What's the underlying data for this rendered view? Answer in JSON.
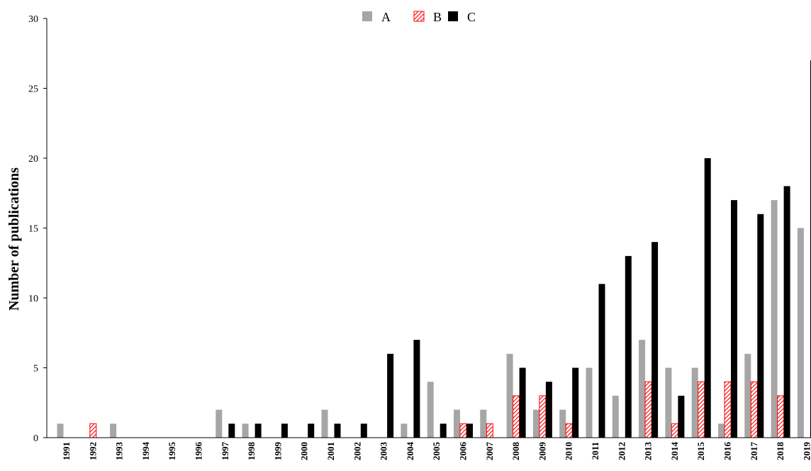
{
  "chart_data": {
    "type": "bar",
    "title": "",
    "xlabel": "",
    "ylabel": "Number of publications",
    "ylim": [
      0,
      30
    ],
    "yticks": [
      0,
      5,
      10,
      15,
      20,
      25,
      30
    ],
    "grid": false,
    "legend": "top-center",
    "categories": [
      "1991",
      "1992",
      "1993",
      "1994",
      "1995",
      "1996",
      "1997",
      "1998",
      "1999",
      "2000",
      "2001",
      "2002",
      "2003",
      "2004",
      "2005",
      "2006",
      "2007",
      "2008",
      "2009",
      "2010",
      "2011",
      "2012",
      "2013",
      "2014",
      "2015",
      "2016",
      "2017",
      "2018",
      "2019"
    ],
    "series": [
      {
        "name": "A",
        "color": "#a6a6a6",
        "pattern": "solid",
        "values": [
          1,
          0,
          1,
          0,
          0,
          0,
          2,
          1,
          0,
          0,
          2,
          0,
          0,
          1,
          4,
          2,
          2,
          6,
          2,
          2,
          5,
          3,
          7,
          5,
          5,
          1,
          6,
          17,
          15
        ]
      },
      {
        "name": "B",
        "color": "#ff0000",
        "pattern": "hatched",
        "values": [
          0,
          1,
          0,
          0,
          0,
          0,
          0,
          0,
          0,
          0,
          0,
          0,
          0,
          0,
          0,
          1,
          1,
          3,
          3,
          1,
          0,
          0,
          4,
          1,
          4,
          4,
          4,
          3,
          0
        ]
      },
      {
        "name": "C",
        "color": "#000000",
        "pattern": "solid",
        "values": [
          0,
          0,
          0,
          0,
          0,
          0,
          1,
          1,
          1,
          1,
          1,
          1,
          6,
          7,
          1,
          1,
          0,
          5,
          4,
          5,
          11,
          13,
          14,
          3,
          20,
          17,
          16,
          18,
          27
        ]
      }
    ]
  }
}
